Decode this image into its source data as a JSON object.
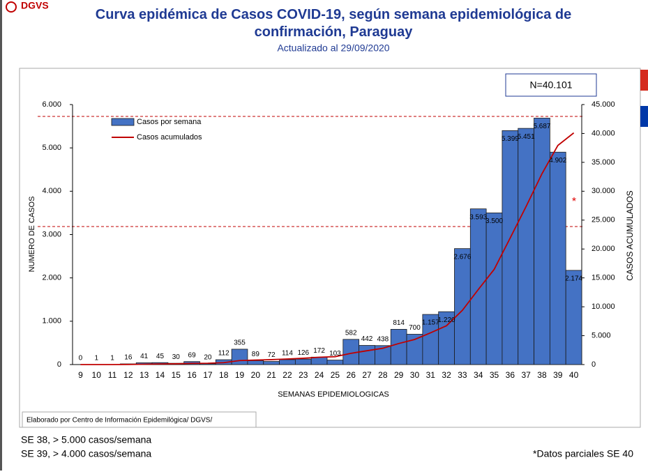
{
  "page": {
    "logo": "DGVS",
    "n_label": "N=40.101",
    "source": "Elaborado por Centro de Información Epidemilógica/ DGVS/",
    "notes": [
      "SE 38, > 5.000 casos/semana",
      "SE 39, > 4.000 casos/semana"
    ],
    "footnote": "*Datos parciales SE 40",
    "marker": "*"
  },
  "chart_data": {
    "type": "bar-line",
    "title": "Curva epidémica de Casos COVID-19, según semana epidemiológica de confirmación, Paraguay",
    "subtitle": "Actualizado al 29/09/2020",
    "x_label": "SEMANAS EPIDEMIOLOGICAS",
    "y_label": "NUMERO DE CASOS",
    "y2_label": "CASOS  ACUMULADOS",
    "categories": [
      "9",
      "10",
      "11",
      "12",
      "13",
      "14",
      "15",
      "16",
      "17",
      "18",
      "19",
      "20",
      "21",
      "22",
      "23",
      "24",
      "25",
      "26",
      "27",
      "28",
      "29",
      "30",
      "31",
      "32",
      "33",
      "34",
      "35",
      "36",
      "37",
      "38",
      "39",
      "40"
    ],
    "series": [
      {
        "name": "Casos por semana",
        "type": "bar",
        "color": "#4472c4",
        "values": [
          0,
          1,
          1,
          16,
          41,
          45,
          30,
          69,
          20,
          112,
          355,
          89,
          72,
          114,
          126,
          172,
          103,
          582,
          442,
          438,
          814,
          700,
          1157,
          1220,
          2676,
          3593,
          3500,
          5399,
          5451,
          5687,
          4902,
          2174
        ],
        "value_labels": [
          "0",
          "1",
          "1",
          "16",
          "41",
          "45",
          "30",
          "69",
          "20",
          "112",
          "355",
          "89",
          "72",
          "114",
          "126",
          "172",
          "103",
          "582",
          "442",
          "438",
          "814",
          "700",
          "1.157",
          "1.220",
          "2.676",
          "3.593",
          "3.500",
          "5.399",
          "5.451",
          "5.687",
          "4.902",
          "2.174"
        ]
      },
      {
        "name": "Casos acumulados",
        "type": "line",
        "color": "#c00000",
        "axis": "y2",
        "values": [
          0,
          1,
          2,
          18,
          59,
          104,
          134,
          203,
          223,
          335,
          690,
          779,
          851,
          965,
          1091,
          1263,
          1366,
          1948,
          2390,
          2828,
          3642,
          4342,
          5499,
          6719,
          9395,
          12988,
          16488,
          21887,
          27338,
          33025,
          37927,
          40101
        ]
      }
    ],
    "ylim": [
      0,
      6000
    ],
    "yticks": [
      0,
      {
        "value": 1000,
        "label": "1.000"
      },
      {
        "value": 2000,
        "label": "2.000"
      },
      {
        "value": 3000,
        "label": "3.000"
      },
      {
        "value": 4000,
        "label": "4.000"
      },
      {
        "value": 5000,
        "label": "5.000"
      },
      {
        "value": 6000,
        "label": "6.000"
      }
    ],
    "y2lim": [
      0,
      45000
    ],
    "y2ticks": [
      0,
      {
        "value": 5000,
        "label": "5.000"
      },
      {
        "value": 10000,
        "label": "10.000"
      },
      {
        "value": 15000,
        "label": "15.000"
      },
      {
        "value": 20000,
        "label": "20.000"
      },
      {
        "value": 25000,
        "label": "25.000"
      },
      {
        "value": 30000,
        "label": "30.000"
      },
      {
        "value": 35000,
        "label": "35.000"
      },
      {
        "value": 40000,
        "label": "40.000"
      },
      {
        "value": 45000,
        "label": "45.000"
      }
    ],
    "grid": false
  }
}
